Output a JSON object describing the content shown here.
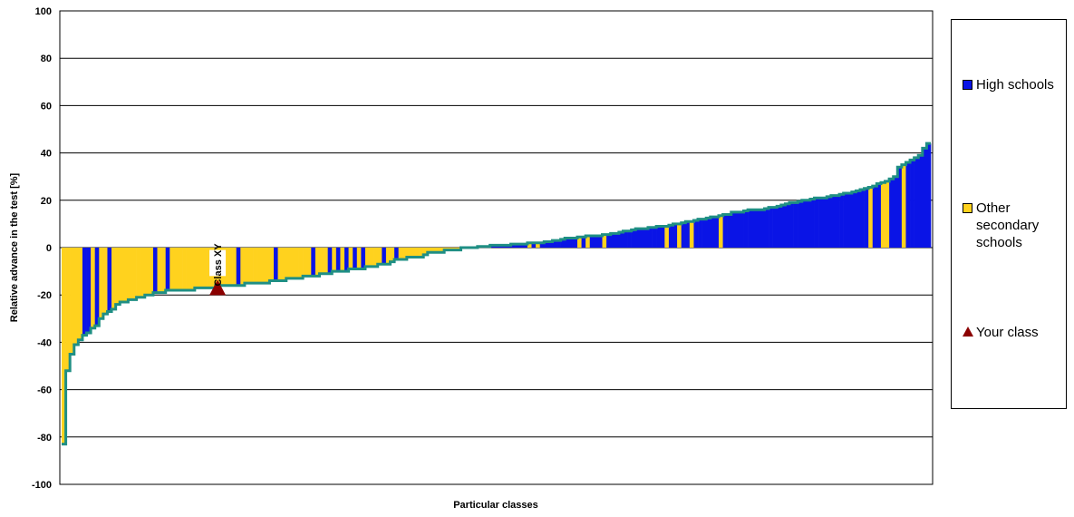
{
  "chart_data": {
    "type": "bar",
    "title": "",
    "xlabel": "Particular classes",
    "ylabel": "Relative advance in the test [%]",
    "ylim": [
      -100,
      100
    ],
    "yticks": [
      "100",
      "80",
      "60",
      "40",
      "20",
      "0",
      "-20",
      "-40",
      "-60",
      "-80",
      "-100"
    ],
    "grid": true,
    "legend_placement": "right",
    "annotation": {
      "label": "Class XY",
      "series": "Your class",
      "class_index": 37,
      "value": -17
    },
    "series": [
      {
        "name": "High schools",
        "color": "#0a14e6"
      },
      {
        "name": "Other secondary schools",
        "color": "#ffd21e"
      },
      {
        "name": "Your class",
        "color": "#8b0000",
        "marker": "triangle"
      }
    ],
    "values": [
      -83,
      -52,
      -45,
      -41,
      -39,
      -37,
      -36,
      -34,
      -33,
      -30,
      -28,
      -27,
      -26,
      -24,
      -23,
      -23,
      -22,
      -22,
      -21,
      -21,
      -20,
      -20,
      -19,
      -19,
      -19,
      -18,
      -18,
      -18,
      -18,
      -18,
      -18,
      -18,
      -17,
      -17,
      -17,
      -17,
      -17,
      -16,
      -16,
      -16,
      -16,
      -16,
      -16,
      -16,
      -15,
      -15,
      -15,
      -15,
      -15,
      -15,
      -14,
      -14,
      -14,
      -14,
      -13,
      -13,
      -13,
      -13,
      -12,
      -12,
      -12,
      -12,
      -11,
      -11,
      -11,
      -10,
      -10,
      -10,
      -10,
      -9,
      -9,
      -9,
      -9,
      -8,
      -8,
      -8,
      -7,
      -7,
      -7,
      -6,
      -5,
      -5,
      -5,
      -4,
      -4,
      -4,
      -4,
      -3,
      -2,
      -2,
      -2,
      -2,
      -1,
      -1,
      -1,
      -1,
      0,
      0,
      0,
      0,
      0.5,
      0.5,
      0.5,
      1,
      1,
      1,
      1,
      1,
      1.5,
      1.5,
      1.5,
      1.5,
      2,
      2,
      2,
      2,
      2.5,
      2.5,
      3,
      3,
      3.5,
      4,
      4,
      4,
      4.5,
      4.5,
      5,
      5,
      5,
      5,
      5.5,
      5.5,
      6,
      6,
      6.5,
      7,
      7,
      7.5,
      8,
      8,
      8,
      8.5,
      8.5,
      9,
      9,
      9,
      9.5,
      10,
      10,
      10.5,
      11,
      11,
      11.5,
      12,
      12,
      12.5,
      13,
      13,
      13.5,
      14,
      14,
      15,
      15,
      15,
      15.5,
      16,
      16,
      16,
      16,
      16.5,
      17,
      17,
      17.5,
      18,
      18.5,
      19,
      19,
      19.5,
      20,
      20,
      20.5,
      21,
      21,
      21,
      21.5,
      22,
      22,
      22.5,
      23,
      23,
      23.5,
      24,
      24.5,
      25,
      25.5,
      26,
      27,
      27.5,
      28,
      29,
      30,
      34,
      35,
      36,
      37,
      38,
      39,
      42,
      44
    ],
    "types": [
      "O",
      "O",
      "O",
      "O",
      "O",
      "H",
      "H",
      "O",
      "H",
      "O",
      "O",
      "H",
      "O",
      "O",
      "O",
      "O",
      "O",
      "O",
      "O",
      "O",
      "O",
      "O",
      "H",
      "O",
      "O",
      "H",
      "O",
      "O",
      "O",
      "O",
      "O",
      "O",
      "O",
      "O",
      "O",
      "O",
      "O",
      "O",
      "O",
      "O",
      "O",
      "O",
      "H",
      "O",
      "O",
      "O",
      "O",
      "O",
      "O",
      "O",
      "O",
      "H",
      "O",
      "O",
      "O",
      "O",
      "O",
      "O",
      "O",
      "O",
      "H",
      "O",
      "O",
      "O",
      "H",
      "O",
      "H",
      "O",
      "H",
      "O",
      "H",
      "O",
      "H",
      "O",
      "O",
      "O",
      "O",
      "H",
      "O",
      "O",
      "H",
      "O",
      "O",
      "O",
      "O",
      "O",
      "O",
      "O",
      "O",
      "O",
      "O",
      "O",
      "O",
      "O",
      "O",
      "O",
      "O",
      "O",
      "O",
      "H",
      "O",
      "H",
      "H",
      "H",
      "H",
      "H",
      "H",
      "H",
      "H",
      "H",
      "H",
      "H",
      "O",
      "H",
      "O",
      "H",
      "H",
      "H",
      "H",
      "H",
      "H",
      "H",
      "H",
      "H",
      "O",
      "H",
      "O",
      "H",
      "H",
      "H",
      "O",
      "H",
      "H",
      "H",
      "H",
      "H",
      "H",
      "H",
      "H",
      "H",
      "H",
      "H",
      "H",
      "H",
      "H",
      "O",
      "H",
      "H",
      "O",
      "H",
      "H",
      "O",
      "H",
      "H",
      "H",
      "H",
      "H",
      "H",
      "O",
      "H",
      "H",
      "H",
      "H",
      "H",
      "H",
      "H",
      "H",
      "H",
      "H",
      "H",
      "H",
      "H",
      "H",
      "H",
      "H",
      "H",
      "H",
      "H",
      "H",
      "H",
      "H",
      "H",
      "H",
      "H",
      "H",
      "H",
      "H",
      "H",
      "H",
      "H",
      "H",
      "H",
      "H",
      "H",
      "O",
      "H",
      "H",
      "O",
      "O",
      "H",
      "H",
      "H",
      "O",
      "H",
      "H"
    ]
  }
}
